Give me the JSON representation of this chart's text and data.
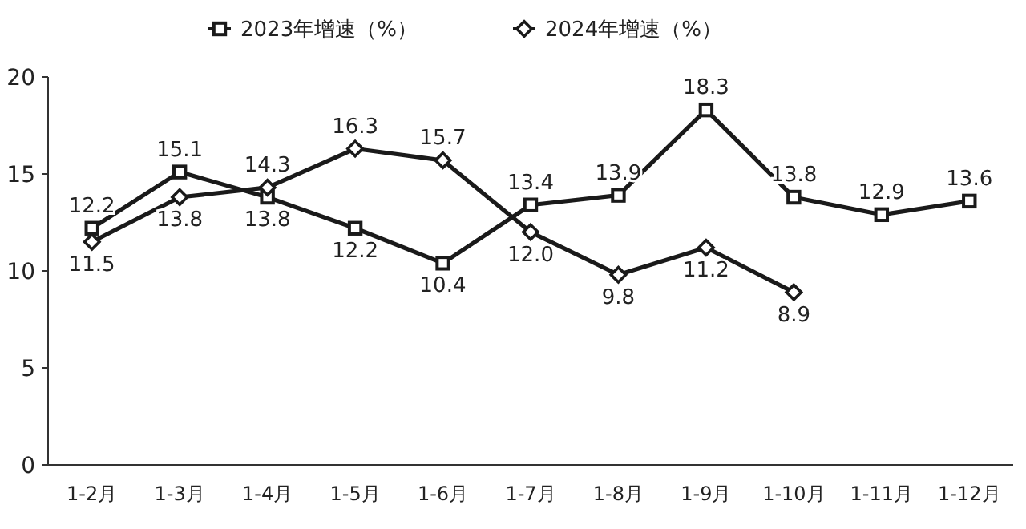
{
  "chart_data": {
    "type": "line",
    "categories": [
      "1-2月",
      "1-3月",
      "1-4月",
      "1-5月",
      "1-6月",
      "1-7月",
      "1-8月",
      "1-9月",
      "1-10月",
      "1-11月",
      "1-12月"
    ],
    "series": [
      {
        "name": "2023年增速（%）",
        "color": "#1a1a1a",
        "marker": "square",
        "values": [
          12.2,
          15.1,
          13.8,
          12.2,
          10.4,
          13.4,
          13.9,
          18.3,
          13.8,
          12.9,
          13.6
        ],
        "value_labels": [
          "12.2",
          "15.1",
          "13.8",
          "12.2",
          "10.4",
          "13.4",
          "13.9",
          "18.3",
          "13.8",
          "12.9",
          "13.6"
        ]
      },
      {
        "name": "2024年增速（%）",
        "color": "#1a1a1a",
        "marker": "diamond",
        "values": [
          11.5,
          13.8,
          14.3,
          16.3,
          15.7,
          12.0,
          9.8,
          11.2,
          8.9,
          null,
          null
        ],
        "value_labels": [
          "11.5",
          "13.8",
          "14.3",
          "16.3",
          "15.7",
          "12.0",
          "9.8",
          "11.2",
          "8.9",
          null,
          null
        ]
      }
    ],
    "ylim": [
      0,
      20
    ],
    "yticks": [
      0,
      5,
      10,
      15,
      20
    ],
    "grid": false,
    "legend": "top"
  }
}
